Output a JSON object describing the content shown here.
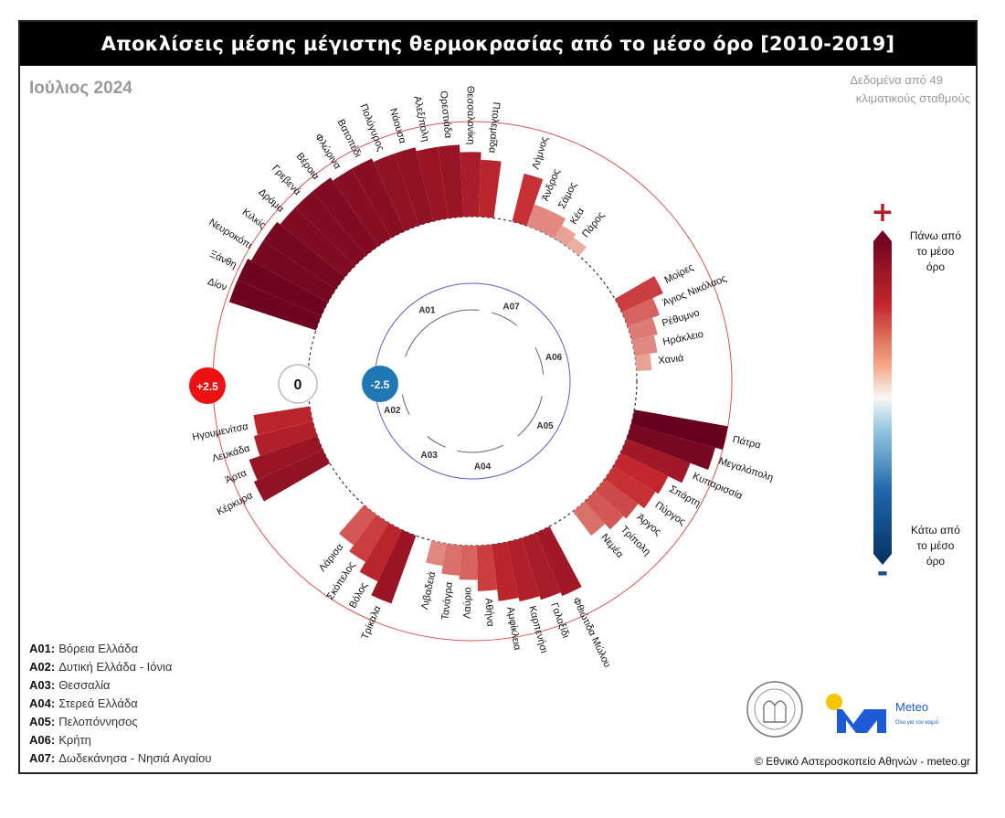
{
  "header": {
    "title": "Αποκλίσεις μέσης μέγιστης θερμοκρασίας από το μέσο όρο [2010-2019]",
    "period": "Ιούλιος 2024",
    "note_line1": "Δεδομένα από 49",
    "note_line2": "κλιματικούς σταθμούς"
  },
  "colors": {
    "dark_red": "#67001f",
    "light_red": "#f7d4c0",
    "dark_blue": "#053061",
    "ring": "#e05050",
    "inner_ring": "#5b5bd6",
    "plus_marker": "#ee1111",
    "minus_marker": "#1f78b4"
  },
  "chart_data": {
    "type": "radial-bar",
    "unit": "°C",
    "scale": {
      "inner": -2.5,
      "zero": 0,
      "outer": 2.5
    },
    "scale_labels": {
      "outer": "+2.5",
      "zero": "0",
      "inner": "-2.5"
    },
    "regions": [
      {
        "code": "A01",
        "name": "Βόρεια Ελλάδα"
      },
      {
        "code": "A02",
        "name": "Δυτική Ελλάδα - Ιόνια"
      },
      {
        "code": "A03",
        "name": "Θεσσαλία"
      },
      {
        "code": "A04",
        "name": "Στερεά Ελλάδα"
      },
      {
        "code": "A05",
        "name": "Πελοπόννησος"
      },
      {
        "code": "A06",
        "name": "Κρήτη"
      },
      {
        "code": "A07",
        "name": "Δωδεκάνησα - Νησιά Αιγαίου"
      }
    ],
    "stations": [
      {
        "region": "A07",
        "name": "Λήμνος",
        "value": 1.3
      },
      {
        "region": "A07",
        "name": "Άνδρος",
        "value": 0.6
      },
      {
        "region": "A07",
        "name": "Σάμος",
        "value": 0.6
      },
      {
        "region": "A07",
        "name": "Κέα",
        "value": 0.4
      },
      {
        "region": "A07",
        "name": "Πάρος",
        "value": 0.3
      },
      {
        "region": "A06",
        "name": "Μοίρες",
        "value": 1.2
      },
      {
        "region": "A06",
        "name": "Άγιος Νικόλαος",
        "value": 0.9
      },
      {
        "region": "A06",
        "name": "Ρέθυμνο",
        "value": 0.7
      },
      {
        "region": "A06",
        "name": "Ηράκλειο",
        "value": 0.6
      },
      {
        "region": "A06",
        "name": "Χανιά",
        "value": 0.4
      },
      {
        "region": "A05",
        "name": "Πάτρα",
        "value": 2.5
      },
      {
        "region": "A05",
        "name": "Μεγαλόπολη",
        "value": 2.3
      },
      {
        "region": "A05",
        "name": "Κυπαρισσία",
        "value": 1.8
      },
      {
        "region": "A05",
        "name": "Σπάρτη",
        "value": 1.4
      },
      {
        "region": "A05",
        "name": "Πύργος",
        "value": 1.3
      },
      {
        "region": "A05",
        "name": "Άργος",
        "value": 1.1
      },
      {
        "region": "A05",
        "name": "Τρίπολη",
        "value": 1.0
      },
      {
        "region": "A05",
        "name": "Νεμέα",
        "value": 0.8
      },
      {
        "region": "A04",
        "name": "Φθιώτιδα Μώλου",
        "value": 1.8
      },
      {
        "region": "A04",
        "name": "Γαλαξίδι",
        "value": 1.7
      },
      {
        "region": "A04",
        "name": "Καρπενήσι",
        "value": 1.6
      },
      {
        "region": "A04",
        "name": "Αμφίκλεια",
        "value": 1.5
      },
      {
        "region": "A04",
        "name": "Αθήνα",
        "value": 1.2
      },
      {
        "region": "A04",
        "name": "Λαύριο",
        "value": 0.9
      },
      {
        "region": "A04",
        "name": "Τανάγρα",
        "value": 0.8
      },
      {
        "region": "A04",
        "name": "Λιβαδειά",
        "value": 0.6
      },
      {
        "region": "A03",
        "name": "Τρίκαλα",
        "value": 1.9
      },
      {
        "region": "A03",
        "name": "Βόλος",
        "value": 1.5
      },
      {
        "region": "A03",
        "name": "Σκόπελος",
        "value": 1.2
      },
      {
        "region": "A03",
        "name": "Λάρισα",
        "value": 1.0
      },
      {
        "region": "A02",
        "name": "Κέρκυρα",
        "value": 2.0
      },
      {
        "region": "A02",
        "name": "Άρτα",
        "value": 1.9
      },
      {
        "region": "A02",
        "name": "Λευκάδα",
        "value": 1.6
      },
      {
        "region": "A02",
        "name": "Ηγουμενίτσα",
        "value": 1.5
      },
      {
        "region": "A01",
        "name": "Δίον",
        "value": 2.4
      },
      {
        "region": "A01",
        "name": "Ξάνθη",
        "value": 2.4
      },
      {
        "region": "A01",
        "name": "Νευροκόπι",
        "value": 2.3
      },
      {
        "region": "A01",
        "name": "Κιλκίς",
        "value": 2.3
      },
      {
        "region": "A01",
        "name": "Δράμα",
        "value": 2.2
      },
      {
        "region": "A01",
        "name": "Γρεβενά",
        "value": 2.2
      },
      {
        "region": "A01",
        "name": "Βέροια",
        "value": 2.2
      },
      {
        "region": "A01",
        "name": "Φλώρινα",
        "value": 2.1
      },
      {
        "region": "A01",
        "name": "Βατοπέδι",
        "value": 2.1
      },
      {
        "region": "A01",
        "name": "Πολύγυρος",
        "value": 2.0
      },
      {
        "region": "A01",
        "name": "Νάουσα",
        "value": 2.0
      },
      {
        "region": "A01",
        "name": "Αλεξ/πολη",
        "value": 1.9
      },
      {
        "region": "A01",
        "name": "Ορεστιάδα",
        "value": 1.9
      },
      {
        "region": "A01",
        "name": "Θεσσαλονίκη",
        "value": 1.7
      },
      {
        "region": "A01",
        "name": "Πτολεμαΐδα",
        "value": 1.5
      }
    ]
  },
  "legend": {
    "plus": "+",
    "minus": "-",
    "above_line1": "Πάνω από",
    "above_line2": "το μέσο",
    "above_line3": "όρο",
    "below_line1": "Κάτω από",
    "below_line2": "το μέσο",
    "below_line3": "όρο"
  },
  "footer": {
    "credit": "© Εθνικό Αστεροσκοπείο Αθηνών - meteo.gr",
    "logo_text": "Meteo",
    "logo_subtitle": "Όλα για τον καιρό"
  }
}
